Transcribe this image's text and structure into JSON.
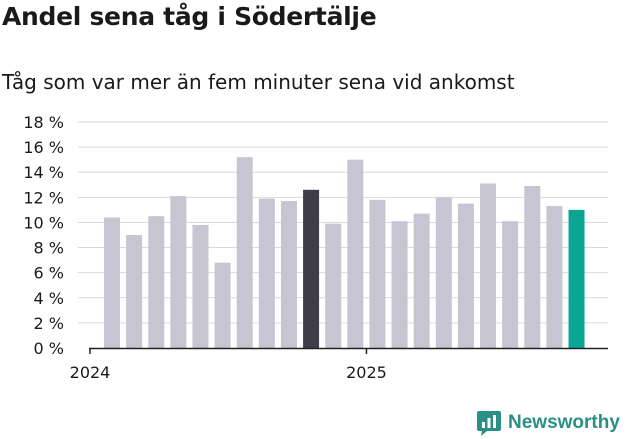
{
  "title": "Andel sena tåg i Södertälje",
  "subtitle": "Tåg som var mer än fem minuter sena vid ankomst",
  "brand": "Newsworthy",
  "colors": {
    "bar": "#c6c5d1",
    "highlight": "#3f3d4a",
    "latest": "#0aa595",
    "grid": "#d9d9d9",
    "axis": "#222222",
    "text": "#1a1a1a",
    "brand": "#2b8f86"
  },
  "chart_data": {
    "type": "bar",
    "title": "Andel sena tåg i Södertälje",
    "subtitle": "Tåg som var mer än fem minuter sena vid ankomst",
    "ylabel": "",
    "xlabel": "",
    "ylim": [
      0,
      18
    ],
    "yticks": [
      0,
      2,
      4,
      6,
      8,
      10,
      12,
      14,
      16,
      18
    ],
    "ytick_labels": [
      "0 %",
      "2 %",
      "4 %",
      "6 %",
      "8 %",
      "10 %",
      "12 %",
      "14 %",
      "16 %",
      "18 %"
    ],
    "xtick_labels": [
      {
        "label": "2024",
        "bar_index": 0
      },
      {
        "label": "2025",
        "bar_index": 12
      }
    ],
    "grid": true,
    "values": [
      10.4,
      9.0,
      10.5,
      12.1,
      9.8,
      6.8,
      15.2,
      11.9,
      11.7,
      12.6,
      9.9,
      15.0,
      11.8,
      10.1,
      10.7,
      12.0,
      11.5,
      13.1,
      10.1,
      12.9,
      11.3,
      11.0
    ],
    "highlight_index": 9,
    "latest_index": 21
  }
}
